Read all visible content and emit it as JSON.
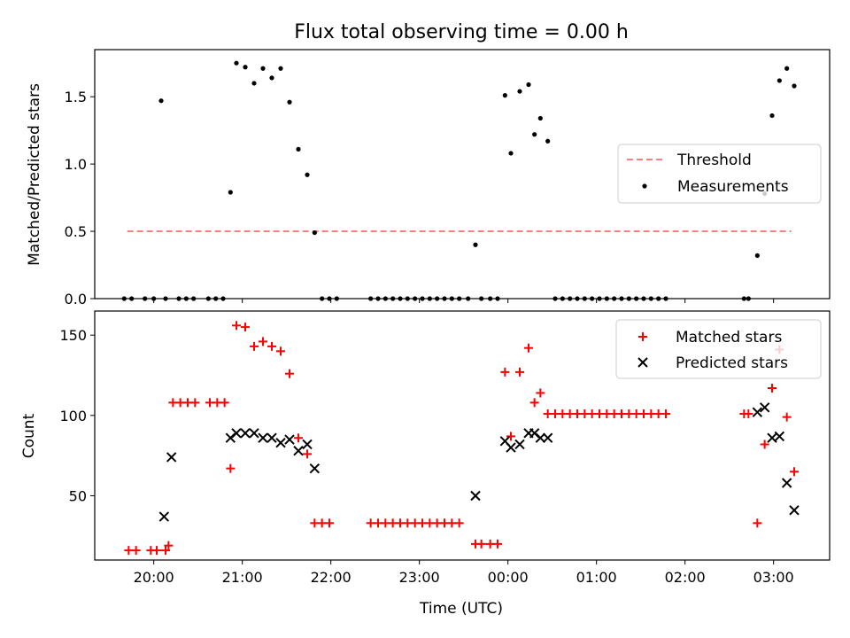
{
  "title": "Flux total observing time = 0.00 h",
  "colors": {
    "threshold": "#ff7f7f",
    "measurement": "#000000",
    "matched": "#ff0000",
    "predicted": "#000000"
  },
  "chart_data": [
    {
      "type": "scatter",
      "title": "Flux total observing time = 0.00 h",
      "xlabel": "",
      "ylabel": "Matched/Predicted stars",
      "xlim": [
        "19:20",
        "03:38"
      ],
      "ylim": [
        0,
        1.85
      ],
      "yticks": [
        0.0,
        0.5,
        1.0,
        1.5
      ],
      "ytick_labels": [
        "0.0",
        "0.5",
        "1.0",
        "1.5"
      ],
      "legend_position": "center-right",
      "threshold": {
        "name": "Threshold",
        "y": 0.5,
        "x_range": [
          "19:42",
          "03:12"
        ],
        "style": "dashed"
      },
      "series": [
        {
          "name": "Measurements",
          "marker": "dot",
          "points": [
            [
              "19:40",
              0
            ],
            [
              "19:45",
              0
            ],
            [
              "19:54",
              0
            ],
            [
              "20:00",
              0
            ],
            [
              "20:05",
              1.47
            ],
            [
              "20:08",
              0
            ],
            [
              "20:17",
              0
            ],
            [
              "20:22",
              0
            ],
            [
              "20:27",
              0
            ],
            [
              "20:37",
              0
            ],
            [
              "20:42",
              0
            ],
            [
              "20:47",
              0
            ],
            [
              "20:52",
              0.79
            ],
            [
              "20:56",
              1.75
            ],
            [
              "21:02",
              1.72
            ],
            [
              "21:08",
              1.6
            ],
            [
              "21:14",
              1.71
            ],
            [
              "21:20",
              1.64
            ],
            [
              "21:26",
              1.71
            ],
            [
              "21:32",
              1.46
            ],
            [
              "21:38",
              1.11
            ],
            [
              "21:44",
              0.92
            ],
            [
              "21:49",
              0.49
            ],
            [
              "21:54",
              0
            ],
            [
              "21:59",
              0
            ],
            [
              "22:04",
              0
            ],
            [
              "22:27",
              0
            ],
            [
              "22:32",
              0
            ],
            [
              "22:37",
              0
            ],
            [
              "22:42",
              0
            ],
            [
              "22:47",
              0
            ],
            [
              "22:52",
              0
            ],
            [
              "22:57",
              0
            ],
            [
              "23:02",
              0
            ],
            [
              "23:07",
              0
            ],
            [
              "23:12",
              0
            ],
            [
              "23:17",
              0
            ],
            [
              "23:22",
              0
            ],
            [
              "23:27",
              0
            ],
            [
              "23:33",
              0
            ],
            [
              "23:38",
              0.4
            ],
            [
              "23:42",
              0
            ],
            [
              "23:48",
              0
            ],
            [
              "23:53",
              0
            ],
            [
              "23:58",
              1.51
            ],
            [
              "00:02",
              1.08
            ],
            [
              "00:08",
              1.54
            ],
            [
              "00:14",
              1.59
            ],
            [
              "00:18",
              1.22
            ],
            [
              "00:22",
              1.34
            ],
            [
              "00:27",
              1.17
            ],
            [
              "00:32",
              0
            ],
            [
              "00:37",
              0
            ],
            [
              "00:42",
              0
            ],
            [
              "00:47",
              0
            ],
            [
              "00:52",
              0
            ],
            [
              "00:57",
              0
            ],
            [
              "01:02",
              0
            ],
            [
              "01:07",
              0
            ],
            [
              "01:12",
              0
            ],
            [
              "01:17",
              0
            ],
            [
              "01:22",
              0
            ],
            [
              "01:27",
              0
            ],
            [
              "01:32",
              0
            ],
            [
              "01:37",
              0
            ],
            [
              "01:42",
              0
            ],
            [
              "01:47",
              0
            ],
            [
              "02:40",
              0
            ],
            [
              "02:43",
              0
            ],
            [
              "02:49",
              0.32
            ],
            [
              "02:54",
              0.78
            ],
            [
              "02:59",
              1.36
            ],
            [
              "03:04",
              1.62
            ],
            [
              "03:09",
              1.71
            ],
            [
              "03:14",
              1.58
            ]
          ]
        }
      ]
    },
    {
      "type": "scatter",
      "xlabel": "Time (UTC)",
      "ylabel": "Count",
      "xlim": [
        "19:20",
        "03:38"
      ],
      "ylim": [
        10,
        165
      ],
      "xticks": [
        "20:00",
        "21:00",
        "22:00",
        "23:00",
        "00:00",
        "01:00",
        "02:00",
        "03:00"
      ],
      "yticks": [
        50,
        100,
        150
      ],
      "ytick_labels": [
        "50",
        "100",
        "150"
      ],
      "legend_position": "top-right",
      "series": [
        {
          "name": "Matched stars",
          "marker": "plus",
          "points": [
            [
              "19:43",
              16
            ],
            [
              "19:48",
              16
            ],
            [
              "19:58",
              16
            ],
            [
              "20:02",
              16
            ],
            [
              "20:08",
              16
            ],
            [
              "20:10",
              19
            ],
            [
              "20:13",
              108
            ],
            [
              "20:18",
              108
            ],
            [
              "20:23",
              108
            ],
            [
              "20:28",
              108
            ],
            [
              "20:38",
              108
            ],
            [
              "20:43",
              108
            ],
            [
              "20:48",
              108
            ],
            [
              "20:52",
              67
            ],
            [
              "20:56",
              156
            ],
            [
              "21:02",
              155
            ],
            [
              "21:08",
              143
            ],
            [
              "21:14",
              146
            ],
            [
              "21:20",
              143
            ],
            [
              "21:26",
              140
            ],
            [
              "21:32",
              126
            ],
            [
              "21:38",
              86
            ],
            [
              "21:44",
              76
            ],
            [
              "21:49",
              33
            ],
            [
              "21:54",
              33
            ],
            [
              "21:59",
              33
            ],
            [
              "22:27",
              33
            ],
            [
              "22:32",
              33
            ],
            [
              "22:37",
              33
            ],
            [
              "22:42",
              33
            ],
            [
              "22:47",
              33
            ],
            [
              "22:52",
              33
            ],
            [
              "22:57",
              33
            ],
            [
              "23:02",
              33
            ],
            [
              "23:07",
              33
            ],
            [
              "23:12",
              33
            ],
            [
              "23:17",
              33
            ],
            [
              "23:22",
              33
            ],
            [
              "23:27",
              33
            ],
            [
              "23:38",
              20
            ],
            [
              "23:42",
              20
            ],
            [
              "23:48",
              20
            ],
            [
              "23:53",
              20
            ],
            [
              "23:58",
              127
            ],
            [
              "00:02",
              87
            ],
            [
              "00:08",
              127
            ],
            [
              "00:14",
              142
            ],
            [
              "00:18",
              108
            ],
            [
              "00:22",
              114
            ],
            [
              "00:27",
              101
            ],
            [
              "00:32",
              101
            ],
            [
              "00:37",
              101
            ],
            [
              "00:42",
              101
            ],
            [
              "00:47",
              101
            ],
            [
              "00:52",
              101
            ],
            [
              "00:57",
              101
            ],
            [
              "01:02",
              101
            ],
            [
              "01:07",
              101
            ],
            [
              "01:12",
              101
            ],
            [
              "01:17",
              101
            ],
            [
              "01:22",
              101
            ],
            [
              "01:27",
              101
            ],
            [
              "01:32",
              101
            ],
            [
              "01:37",
              101
            ],
            [
              "01:42",
              101
            ],
            [
              "01:47",
              101
            ],
            [
              "02:40",
              101
            ],
            [
              "02:43",
              101
            ],
            [
              "02:49",
              33
            ],
            [
              "02:54",
              82
            ],
            [
              "02:59",
              117
            ],
            [
              "03:04",
              141
            ],
            [
              "03:09",
              99
            ],
            [
              "03:14",
              65
            ]
          ]
        },
        {
          "name": "Predicted stars",
          "marker": "x",
          "points": [
            [
              "20:07",
              37
            ],
            [
              "20:12",
              74
            ],
            [
              "20:52",
              86
            ],
            [
              "20:56",
              89
            ],
            [
              "21:02",
              89
            ],
            [
              "21:08",
              89
            ],
            [
              "21:14",
              86
            ],
            [
              "21:20",
              86
            ],
            [
              "21:26",
              83
            ],
            [
              "21:32",
              85
            ],
            [
              "21:38",
              78
            ],
            [
              "21:44",
              82
            ],
            [
              "21:49",
              67
            ],
            [
              "23:38",
              50
            ],
            [
              "23:58",
              84
            ],
            [
              "00:02",
              80
            ],
            [
              "00:08",
              82
            ],
            [
              "00:14",
              89
            ],
            [
              "00:18",
              89
            ],
            [
              "00:22",
              86
            ],
            [
              "00:27",
              86
            ],
            [
              "02:49",
              102
            ],
            [
              "02:54",
              105
            ],
            [
              "02:59",
              86
            ],
            [
              "03:04",
              87
            ],
            [
              "03:09",
              58
            ],
            [
              "03:14",
              41
            ]
          ]
        }
      ]
    }
  ]
}
